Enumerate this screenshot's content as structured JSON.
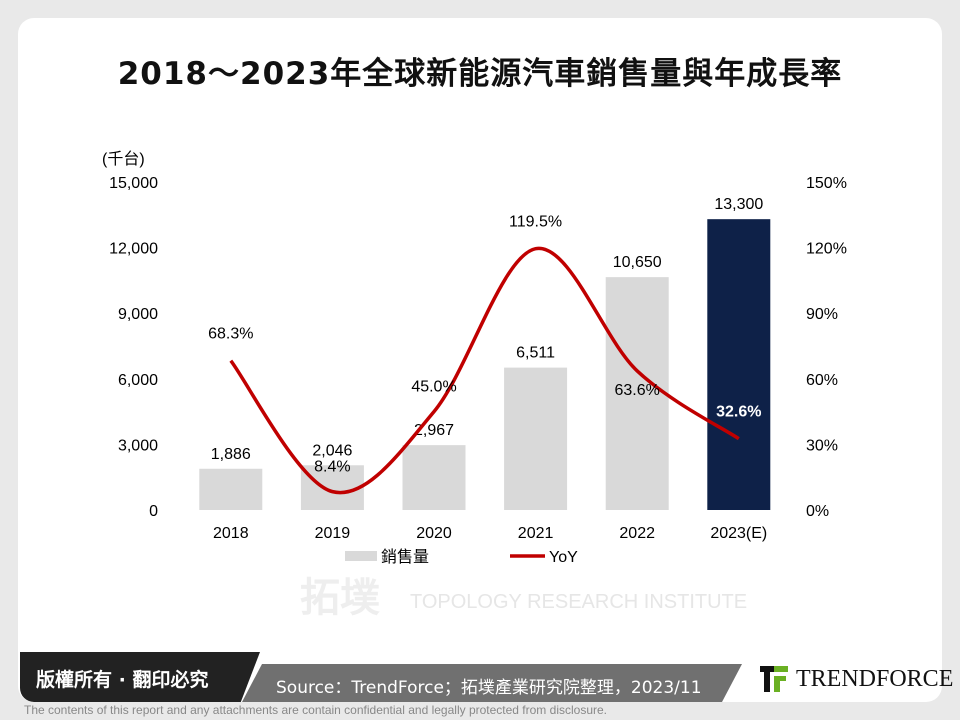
{
  "title": "2018～2023年全球新能源汽車銷售量與年成長率",
  "chart_data": {
    "type": "bar+line",
    "categories": [
      "2018",
      "2019",
      "2020",
      "2021",
      "2022",
      "2023(E)"
    ],
    "series": [
      {
        "name": "銷售量",
        "type": "bar",
        "axis": "left",
        "values": [
          1886,
          2046,
          2967,
          6511,
          10650,
          13300
        ],
        "labels": [
          "1,886",
          "2,046",
          "2,967",
          "6,511",
          "10,650",
          "13,300"
        ]
      },
      {
        "name": "YoY",
        "type": "line",
        "axis": "right",
        "values": [
          68.3,
          8.4,
          45.0,
          119.5,
          63.6,
          32.6
        ],
        "labels": [
          "68.3%",
          "8.4%",
          "45.0%",
          "119.5%",
          "63.6%",
          "32.6%"
        ]
      }
    ],
    "ylabel": "(千台)",
    "ylim": [
      0,
      15000
    ],
    "yticks": [
      "0",
      "3,000",
      "6,000",
      "9,000",
      "12,000",
      "15,000"
    ],
    "y2lim": [
      0,
      150
    ],
    "y2ticks": [
      "0%",
      "30%",
      "60%",
      "90%",
      "120%",
      "150%"
    ],
    "legend": "bottom",
    "grid": false,
    "colors": {
      "bar": "#d9d9d9",
      "bar_highlight": "#0e2148",
      "line": "#c00000"
    }
  },
  "watermark": {
    "cn": "拓墣",
    "en": "TOPOLOGY RESEARCH INSTITUTE"
  },
  "footer": {
    "copyright": "版權所有 · 翻印必究",
    "source": "Source：TrendForce；拓墣產業研究院整理，2023/11",
    "logo": "TRENDFORCE",
    "disclaimer": "The contents of this report and any attachments are contain confidential and legally protected from disclosure."
  }
}
